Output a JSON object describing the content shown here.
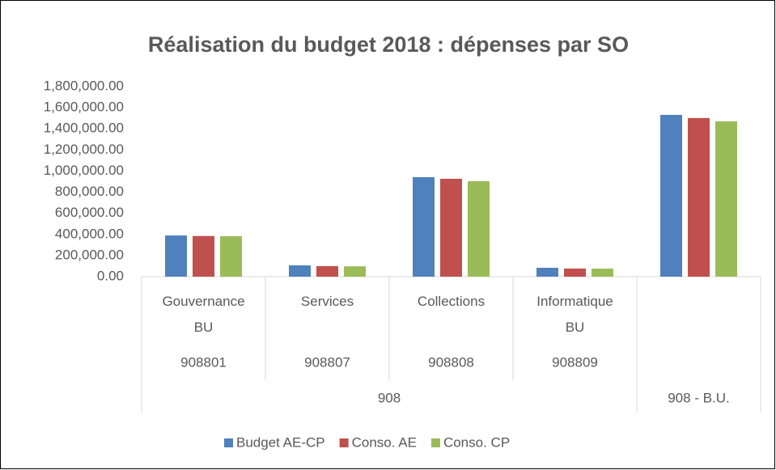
{
  "chart_data": {
    "type": "bar",
    "title": "Réalisation du budget 2018 : dépenses par SO",
    "categories": [
      "Gouvernance BU",
      "Services",
      "Collections",
      "Informatique BU",
      null
    ],
    "category_codes": [
      "908801",
      "908807",
      "908808",
      "908809",
      null
    ],
    "category_groups": [
      {
        "label": "908",
        "span": 4
      },
      {
        "label": "908 - B.U.",
        "span": 1
      }
    ],
    "series": [
      {
        "name": "Budget AE-CP",
        "color": "#4f81bd",
        "values": [
          390000,
          107000,
          942000,
          84000,
          1532000
        ]
      },
      {
        "name": "Conso. AE",
        "color": "#c0504d",
        "values": [
          385000,
          100000,
          927000,
          77000,
          1502000
        ]
      },
      {
        "name": "Conso. CP",
        "color": "#9bbb59",
        "values": [
          383000,
          98000,
          904000,
          76000,
          1471000
        ]
      }
    ],
    "ylim": [
      0,
      1800000
    ],
    "yticks": [
      {
        "value": 0,
        "label": "0.00"
      },
      {
        "value": 200000,
        "label": "200,000.00"
      },
      {
        "value": 400000,
        "label": "400,000.00"
      },
      {
        "value": 600000,
        "label": "600,000.00"
      },
      {
        "value": 800000,
        "label": "800,000.00"
      },
      {
        "value": 1000000,
        "label": "1,000,000.00"
      },
      {
        "value": 1200000,
        "label": "1,200,000.00"
      },
      {
        "value": 1400000,
        "label": "1,400,000.00"
      },
      {
        "value": 1600000,
        "label": "1,600,000.00"
      },
      {
        "value": 1800000,
        "label": "1,800,000.00"
      }
    ],
    "grid": false,
    "legend": "bottom"
  }
}
